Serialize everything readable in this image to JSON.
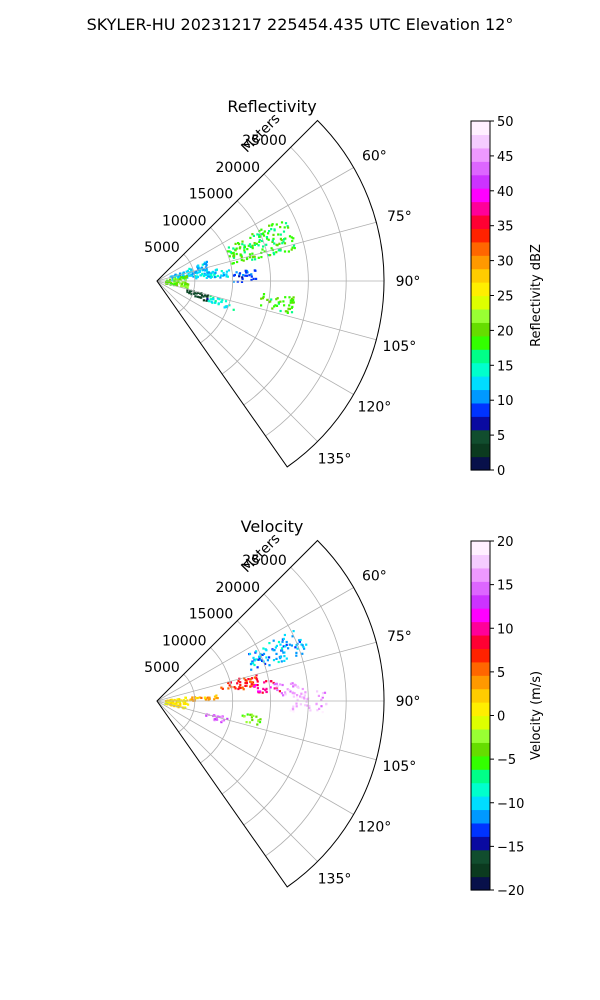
{
  "title": "SKYLER-HU  20231217  225454.435 UTC Elevation 12°",
  "chart_data": [
    {
      "type": "polar-sector",
      "title": "Reflectivity",
      "range_label": "Meters",
      "theta_range_deg": [
        45,
        145
      ],
      "r_max": 30000,
      "range_ticks": [
        {
          "v": 5000,
          "label": "5000"
        },
        {
          "v": 10000,
          "label": "10000"
        },
        {
          "v": 15000,
          "label": "15000"
        },
        {
          "v": 20000,
          "label": "20000"
        },
        {
          "v": 25000,
          "label": "25000"
        }
      ],
      "theta_ticks": [
        {
          "v": 60,
          "label": "60°"
        },
        {
          "v": 75,
          "label": "75°"
        },
        {
          "v": 90,
          "label": "90°"
        },
        {
          "v": 105,
          "label": "105°"
        },
        {
          "v": 120,
          "label": "120°"
        },
        {
          "v": 135,
          "label": "135°"
        }
      ],
      "colorbar": {
        "label": "Reflectivity dBZ",
        "min": 0,
        "max": 50,
        "ticks": [
          {
            "v": 0,
            "label": "0"
          },
          {
            "v": 5,
            "label": "5"
          },
          {
            "v": 10,
            "label": "10"
          },
          {
            "v": 15,
            "label": "15"
          },
          {
            "v": 20,
            "label": "20"
          },
          {
            "v": 25,
            "label": "25"
          },
          {
            "v": 30,
            "label": "30"
          },
          {
            "v": 35,
            "label": "35"
          },
          {
            "v": 40,
            "label": "40"
          },
          {
            "v": 45,
            "label": "45"
          },
          {
            "v": 50,
            "label": "50"
          }
        ],
        "stops": [
          "#08104a",
          "#0b3a1f",
          "#114d2e",
          "#0a0aa0",
          "#0033ff",
          "#0099ff",
          "#00ddff",
          "#00ffcc",
          "#00ff88",
          "#33ff00",
          "#66dd00",
          "#99ff33",
          "#ddff00",
          "#ffee00",
          "#ffcc00",
          "#ff9900",
          "#ff6600",
          "#ff2200",
          "#ff0033",
          "#ff0099",
          "#ff00ff",
          "#cc33ff",
          "#dd66ff",
          "#ee99ff",
          "#f5ccff",
          "#fff0ff"
        ]
      },
      "echoes": [
        {
          "theta": 76,
          "r": 4500,
          "dtheta": 18,
          "dr": 5500,
          "value": 12
        },
        {
          "theta": 70,
          "r": 14500,
          "dtheta": 14,
          "dr": 9000,
          "value": 18
        },
        {
          "theta": 82,
          "r": 8000,
          "dtheta": 8,
          "dr": 3500,
          "value": 13
        },
        {
          "theta": 86,
          "r": 11500,
          "dtheta": 8,
          "dr": 3000,
          "value": 9
        },
        {
          "theta": 90,
          "r": 2500,
          "dtheta": 24,
          "dr": 3000,
          "value": 20
        },
        {
          "theta": 100,
          "r": 16000,
          "dtheta": 8,
          "dr": 4500,
          "value": 19
        },
        {
          "theta": 108,
          "r": 9000,
          "dtheta": 6,
          "dr": 4000,
          "value": 14
        },
        {
          "theta": 108,
          "r": 5500,
          "dtheta": 8,
          "dr": 3000,
          "value": 4
        }
      ]
    },
    {
      "type": "polar-sector",
      "title": "Velocity",
      "range_label": "Meters",
      "theta_range_deg": [
        45,
        145
      ],
      "r_max": 30000,
      "range_ticks": [
        {
          "v": 5000,
          "label": "5000"
        },
        {
          "v": 10000,
          "label": "10000"
        },
        {
          "v": 15000,
          "label": "15000"
        },
        {
          "v": 20000,
          "label": "20000"
        },
        {
          "v": 25000,
          "label": "25000"
        }
      ],
      "theta_ticks": [
        {
          "v": 60,
          "label": "60°"
        },
        {
          "v": 75,
          "label": "75°"
        },
        {
          "v": 90,
          "label": "90°"
        },
        {
          "v": 105,
          "label": "105°"
        },
        {
          "v": 120,
          "label": "120°"
        },
        {
          "v": 135,
          "label": "135°"
        }
      ],
      "colorbar": {
        "label": "Velocity (m/s)",
        "min": -20,
        "max": 20,
        "ticks": [
          {
            "v": -20,
            "label": "−20"
          },
          {
            "v": -15,
            "label": "−15"
          },
          {
            "v": -10,
            "label": "−10"
          },
          {
            "v": -5,
            "label": "−5"
          },
          {
            "v": 0,
            "label": "0"
          },
          {
            "v": 5,
            "label": "5"
          },
          {
            "v": 10,
            "label": "10"
          },
          {
            "v": 15,
            "label": "15"
          },
          {
            "v": 20,
            "label": "20"
          }
        ],
        "stops": [
          "#08104a",
          "#0b3a1f",
          "#114d2e",
          "#0a0aa0",
          "#0033ff",
          "#0099ff",
          "#00ddff",
          "#00ffcc",
          "#00ff88",
          "#33ff00",
          "#66dd00",
          "#99ff33",
          "#ddff00",
          "#ffee00",
          "#ffcc00",
          "#ff9900",
          "#ff6600",
          "#ff2200",
          "#ff0033",
          "#ff0099",
          "#ff00ff",
          "#cc33ff",
          "#dd66ff",
          "#ee99ff",
          "#f5ccff",
          "#fff0ff"
        ]
      },
      "echoes": [
        {
          "theta": 67,
          "r": 17000,
          "dtheta": 10,
          "dr": 8000,
          "value": -11
        },
        {
          "theta": 78,
          "r": 11000,
          "dtheta": 8,
          "dr": 5000,
          "value": 7
        },
        {
          "theta": 82,
          "r": 14500,
          "dtheta": 6,
          "dr": 3500,
          "value": 10
        },
        {
          "theta": 84,
          "r": 17500,
          "dtheta": 6,
          "dr": 4000,
          "value": 16
        },
        {
          "theta": 90,
          "r": 20000,
          "dtheta": 8,
          "dr": 5000,
          "value": 17
        },
        {
          "theta": 85,
          "r": 6000,
          "dtheta": 6,
          "dr": 4000,
          "value": 3
        },
        {
          "theta": 92,
          "r": 2500,
          "dtheta": 24,
          "dr": 3000,
          "value": 1
        },
        {
          "theta": 100,
          "r": 12500,
          "dtheta": 6,
          "dr": 2500,
          "value": -3
        },
        {
          "theta": 105,
          "r": 8000,
          "dtheta": 6,
          "dr": 3000,
          "value": 15
        }
      ]
    }
  ]
}
